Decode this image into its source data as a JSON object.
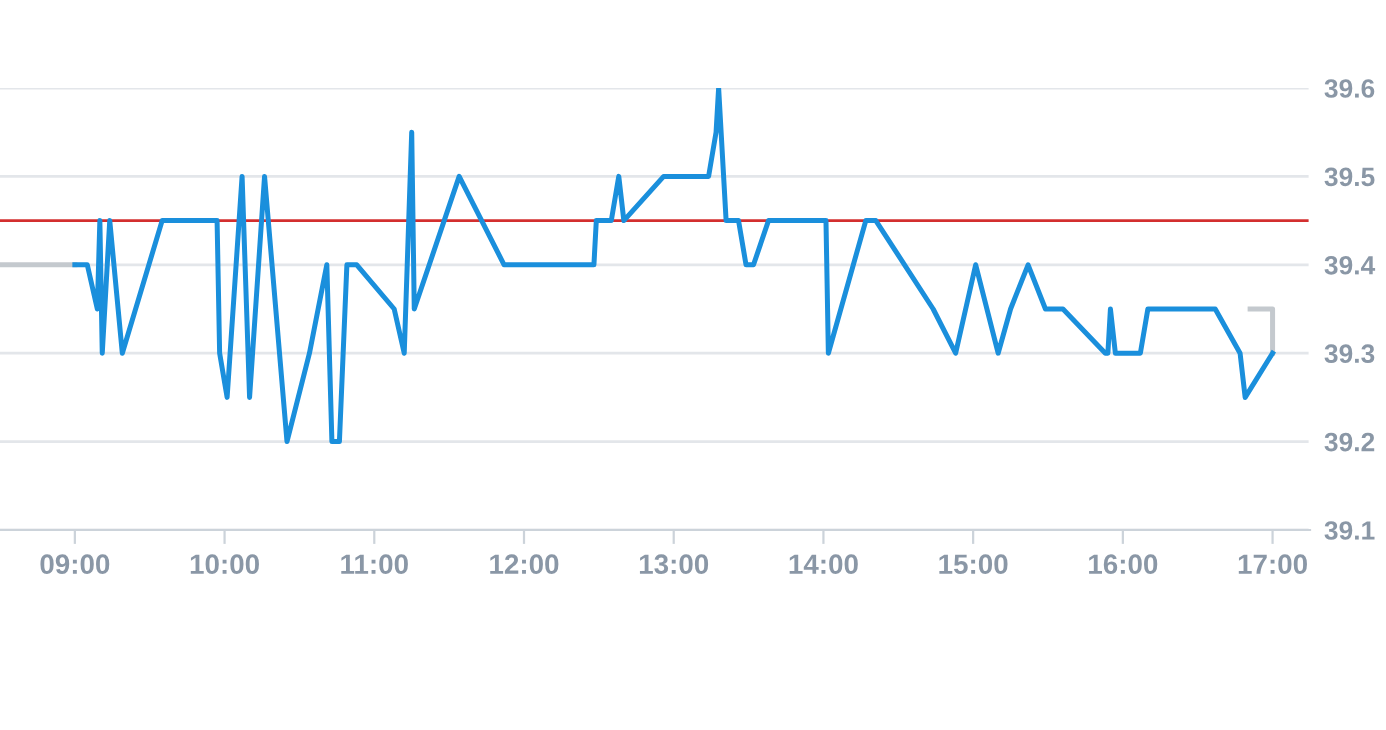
{
  "chart_data": {
    "type": "line",
    "xlim": [
      8.5,
      17.25
    ],
    "ylim": [
      39.1,
      39.6
    ],
    "xticks": [
      {
        "value": 9,
        "label": "09:00"
      },
      {
        "value": 10,
        "label": "10:00"
      },
      {
        "value": 11,
        "label": "11:00"
      },
      {
        "value": 12,
        "label": "12:00"
      },
      {
        "value": 13,
        "label": "13:00"
      },
      {
        "value": 14,
        "label": "14:00"
      },
      {
        "value": 15,
        "label": "15:00"
      },
      {
        "value": 16,
        "label": "16:00"
      },
      {
        "value": 17,
        "label": "17:00"
      }
    ],
    "yticks": [
      39.1,
      39.2,
      39.3,
      39.4,
      39.5,
      39.6
    ],
    "grid": "y",
    "legend": false,
    "marker": "none",
    "line_style": "solid",
    "ref_lines": [
      {
        "axis": "y",
        "value": 39.45,
        "color": "#d32f2f"
      }
    ],
    "series": [
      {
        "color": "#c4c9ce",
        "x": [
          8.5,
          9.0
        ],
        "values": [
          39.4,
          39.4
        ]
      },
      {
        "color": "#c4c9ce",
        "x": [
          16.85,
          17.0,
          17.0
        ],
        "values": [
          39.35,
          39.35,
          39.3
        ]
      },
      {
        "color": "#1a8fdc",
        "x": [
          9.0,
          9.083,
          9.15,
          9.167,
          9.183,
          9.233,
          9.317,
          9.583,
          9.95,
          9.967,
          10.017,
          10.117,
          10.167,
          10.267,
          10.417,
          10.567,
          10.683,
          10.717,
          10.767,
          10.817,
          10.883,
          11.133,
          11.2,
          11.25,
          11.267,
          11.567,
          11.867,
          12.467,
          12.483,
          12.583,
          12.633,
          12.667,
          12.933,
          13.233,
          13.283,
          13.3,
          13.35,
          13.433,
          13.483,
          13.533,
          13.633,
          14.017,
          14.033,
          14.283,
          14.35,
          14.733,
          14.883,
          15.017,
          15.167,
          15.25,
          15.367,
          15.483,
          15.6,
          15.883,
          15.9,
          15.917,
          15.95,
          16.117,
          16.167,
          16.617,
          16.783,
          16.817,
          17.0
        ],
        "values": [
          39.4,
          39.4,
          39.35,
          39.45,
          39.3,
          39.45,
          39.3,
          39.45,
          39.45,
          39.3,
          39.25,
          39.5,
          39.25,
          39.5,
          39.2,
          39.3,
          39.4,
          39.2,
          39.2,
          39.4,
          39.4,
          39.35,
          39.3,
          39.55,
          39.35,
          39.5,
          39.4,
          39.4,
          39.45,
          39.45,
          39.5,
          39.45,
          39.5,
          39.5,
          39.55,
          39.6,
          39.45,
          39.45,
          39.4,
          39.4,
          39.45,
          39.45,
          39.3,
          39.45,
          39.45,
          39.35,
          39.3,
          39.4,
          39.3,
          39.35,
          39.4,
          39.35,
          39.35,
          39.3,
          39.3,
          39.35,
          39.3,
          39.3,
          39.35,
          39.35,
          39.3,
          39.25,
          39.3
        ]
      }
    ]
  }
}
